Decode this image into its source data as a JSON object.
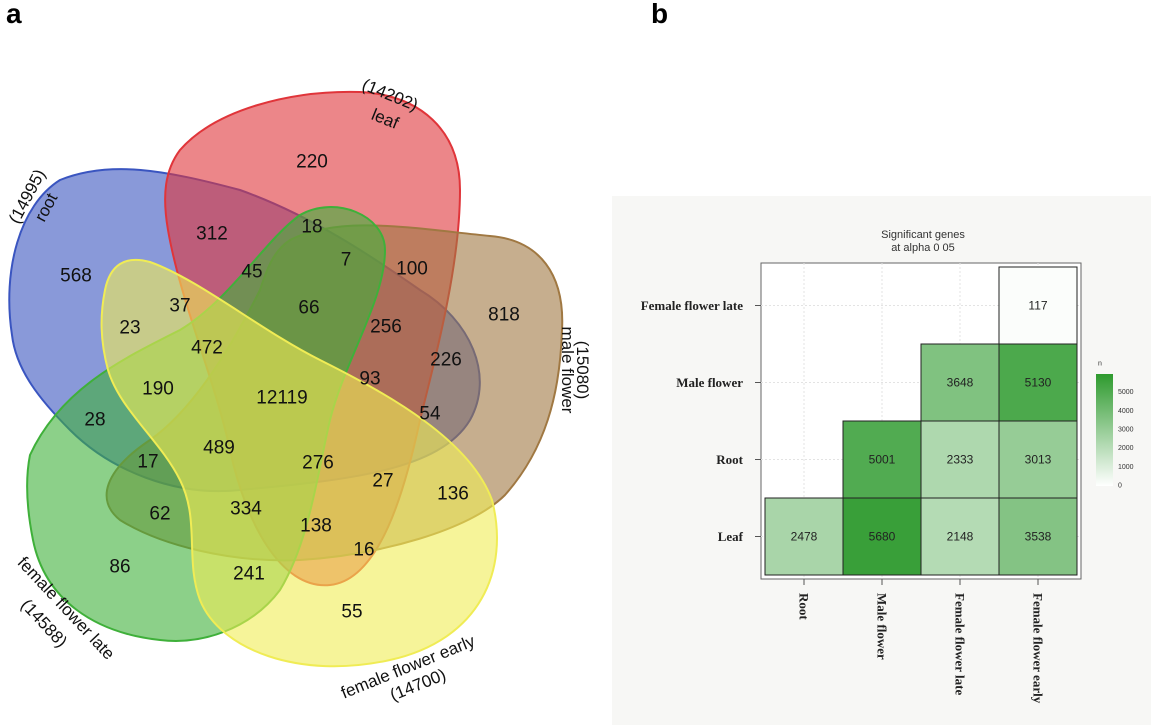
{
  "panels": {
    "a": "a",
    "b": "b"
  },
  "chart_data": [
    {
      "type": "venn",
      "sets": [
        {
          "name": "root",
          "total": "(14995)",
          "color": "#3a55c0"
        },
        {
          "name": "leaf",
          "total": "(14202)",
          "color": "#e0353a"
        },
        {
          "name": "male flower",
          "total": "(15080)",
          "color": "#a07842"
        },
        {
          "name": "female flower early",
          "total": "(14700)",
          "color": "#f0ec55"
        },
        {
          "name": "female flower late",
          "total": "(14588)",
          "color": "#3fb03a"
        }
      ],
      "regions": [
        "220",
        "312",
        "18",
        "7",
        "100",
        "568",
        "45",
        "66",
        "256",
        "818",
        "23",
        "37",
        "472",
        "226",
        "12119",
        "93",
        "190",
        "54",
        "28",
        "489",
        "17",
        "276",
        "27",
        "136",
        "62",
        "334",
        "138",
        "16",
        "86",
        "241",
        "55"
      ]
    },
    {
      "type": "heatmap",
      "title": [
        "Significant genes",
        "at alpha 0 05"
      ],
      "rows": [
        "Female flower late",
        "Male flower",
        "Root",
        "Leaf"
      ],
      "cols": [
        "Root",
        "Male flower",
        "Female flower late",
        "Female flower early"
      ],
      "cells": [
        {
          "row": "Female flower late",
          "col": "Female flower early",
          "value": 117
        },
        {
          "row": "Male flower",
          "col": "Female flower late",
          "value": 3648
        },
        {
          "row": "Male flower",
          "col": "Female flower early",
          "value": 5130
        },
        {
          "row": "Root",
          "col": "Male flower",
          "value": 5001
        },
        {
          "row": "Root",
          "col": "Female flower late",
          "value": 2333
        },
        {
          "row": "Root",
          "col": "Female flower early",
          "value": 3013
        },
        {
          "row": "Leaf",
          "col": "Root",
          "value": 2478
        },
        {
          "row": "Leaf",
          "col": "Male flower",
          "value": 5680
        },
        {
          "row": "Leaf",
          "col": "Female flower late",
          "value": 2148
        },
        {
          "row": "Leaf",
          "col": "Female flower early",
          "value": 3538
        }
      ],
      "legend": {
        "title": "n",
        "ticks": [
          "5000",
          "4000",
          "3000",
          "2000",
          "1000",
          "0"
        ],
        "range": [
          0,
          6000
        ]
      },
      "color_low": "#ffffff",
      "color_high": "#2e9a2e"
    }
  ]
}
